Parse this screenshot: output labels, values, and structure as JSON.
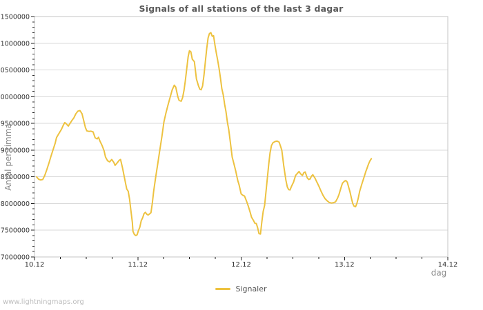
{
  "title": "Signals of all stations of the last 3 dagar",
  "watermark": "www.lightningmaps.org",
  "legend": {
    "items": [
      {
        "label": "Signaler",
        "color": "#EDC240"
      }
    ],
    "position": "bottom-center"
  },
  "colors": {
    "series": "#EDC240",
    "grid": "#dadada",
    "frame": "#c6c6c6",
    "tick": "#222222",
    "tick_label": "#333333",
    "title": "#5a5a5a",
    "axis_title": "#8a8a8a",
    "watermark": "#bdbdbd",
    "background": "#ffffff"
  },
  "chart_data": {
    "type": "line",
    "title": "Signals of all stations of the last 3 dagar",
    "xlabel": "dag",
    "ylabel": "Antal per timma",
    "grid": "horizontal-only",
    "legend_position": "bottom-center",
    "xlim": [
      0,
      4
    ],
    "ylim": [
      7000000,
      11500000
    ],
    "x_major_ticks": [
      0,
      1,
      2,
      3,
      4
    ],
    "x_tick_labels": [
      "10.12",
      "11.12",
      "12.12",
      "13.12",
      "14.12"
    ],
    "x_minor_step": 0.25,
    "y_major_step": 500000,
    "y_minor_step": 100000,
    "y_major_ticks": [
      7000000,
      7500000,
      8000000,
      8500000,
      9000000,
      9500000,
      10000000,
      10500000,
      11000000,
      11500000
    ],
    "y_tick_labels": [
      "7000000",
      "7500000",
      "8000000",
      "8500000",
      "9000000",
      "9500000",
      "10000000",
      "10500000",
      "11000000",
      "11500000"
    ],
    "series": [
      {
        "name": "Signaler",
        "color": "#EDC240",
        "points": [
          [
            0.02,
            8500000
          ],
          [
            0.04,
            8455000
          ],
          [
            0.06,
            8440000
          ],
          [
            0.08,
            8450000
          ],
          [
            0.1,
            8530000
          ],
          [
            0.12,
            8640000
          ],
          [
            0.14,
            8760000
          ],
          [
            0.16,
            8890000
          ],
          [
            0.18,
            9010000
          ],
          [
            0.2,
            9130000
          ],
          [
            0.213,
            9235000
          ],
          [
            0.233,
            9300000
          ],
          [
            0.26,
            9385000
          ],
          [
            0.28,
            9470000
          ],
          [
            0.293,
            9515000
          ],
          [
            0.313,
            9480000
          ],
          [
            0.327,
            9450000
          ],
          [
            0.347,
            9510000
          ],
          [
            0.367,
            9570000
          ],
          [
            0.38,
            9600000
          ],
          [
            0.4,
            9680000
          ],
          [
            0.42,
            9730000
          ],
          [
            0.44,
            9740000
          ],
          [
            0.46,
            9680000
          ],
          [
            0.473,
            9580000
          ],
          [
            0.493,
            9420000
          ],
          [
            0.507,
            9360000
          ],
          [
            0.527,
            9350000
          ],
          [
            0.547,
            9355000
          ],
          [
            0.567,
            9340000
          ],
          [
            0.587,
            9230000
          ],
          [
            0.607,
            9210000
          ],
          [
            0.62,
            9240000
          ],
          [
            0.633,
            9170000
          ],
          [
            0.653,
            9090000
          ],
          [
            0.673,
            8990000
          ],
          [
            0.687,
            8870000
          ],
          [
            0.707,
            8800000
          ],
          [
            0.727,
            8780000
          ],
          [
            0.747,
            8825000
          ],
          [
            0.767,
            8770000
          ],
          [
            0.78,
            8715000
          ],
          [
            0.8,
            8760000
          ],
          [
            0.82,
            8810000
          ],
          [
            0.833,
            8825000
          ],
          [
            0.853,
            8660000
          ],
          [
            0.867,
            8520000
          ],
          [
            0.88,
            8390000
          ],
          [
            0.893,
            8270000
          ],
          [
            0.907,
            8230000
          ],
          [
            0.92,
            8080000
          ],
          [
            0.933,
            7870000
          ],
          [
            0.947,
            7650000
          ],
          [
            0.953,
            7480000
          ],
          [
            0.967,
            7420000
          ],
          [
            0.98,
            7400000
          ],
          [
            0.993,
            7415000
          ],
          [
            1.007,
            7500000
          ],
          [
            1.02,
            7560000
          ],
          [
            1.033,
            7680000
          ],
          [
            1.047,
            7735000
          ],
          [
            1.06,
            7810000
          ],
          [
            1.073,
            7835000
          ],
          [
            1.087,
            7800000
          ],
          [
            1.1,
            7785000
          ],
          [
            1.113,
            7805000
          ],
          [
            1.127,
            7830000
          ],
          [
            1.14,
            8000000
          ],
          [
            1.153,
            8230000
          ],
          [
            1.173,
            8500000
          ],
          [
            1.193,
            8750000
          ],
          [
            1.213,
            9000000
          ],
          [
            1.233,
            9250000
          ],
          [
            1.253,
            9530000
          ],
          [
            1.273,
            9700000
          ],
          [
            1.293,
            9850000
          ],
          [
            1.313,
            9990000
          ],
          [
            1.333,
            10130000
          ],
          [
            1.353,
            10215000
          ],
          [
            1.367,
            10180000
          ],
          [
            1.387,
            10000000
          ],
          [
            1.4,
            9930000
          ],
          [
            1.42,
            9915000
          ],
          [
            1.433,
            9980000
          ],
          [
            1.447,
            10120000
          ],
          [
            1.46,
            10300000
          ],
          [
            1.473,
            10520000
          ],
          [
            1.487,
            10750000
          ],
          [
            1.5,
            10860000
          ],
          [
            1.513,
            10840000
          ],
          [
            1.527,
            10700000
          ],
          [
            1.547,
            10655000
          ],
          [
            1.567,
            10330000
          ],
          [
            1.587,
            10200000
          ],
          [
            1.6,
            10140000
          ],
          [
            1.613,
            10130000
          ],
          [
            1.627,
            10200000
          ],
          [
            1.64,
            10400000
          ],
          [
            1.653,
            10640000
          ],
          [
            1.667,
            10900000
          ],
          [
            1.68,
            11100000
          ],
          [
            1.693,
            11180000
          ],
          [
            1.707,
            11200000
          ],
          [
            1.72,
            11130000
          ],
          [
            1.733,
            11140000
          ],
          [
            1.747,
            10960000
          ],
          [
            1.76,
            10810000
          ],
          [
            1.773,
            10680000
          ],
          [
            1.787,
            10520000
          ],
          [
            1.8,
            10340000
          ],
          [
            1.813,
            10150000
          ],
          [
            1.827,
            10030000
          ],
          [
            1.84,
            9860000
          ],
          [
            1.853,
            9720000
          ],
          [
            1.867,
            9520000
          ],
          [
            1.88,
            9385000
          ],
          [
            1.9,
            9080000
          ],
          [
            1.913,
            8870000
          ],
          [
            1.933,
            8720000
          ],
          [
            1.947,
            8610000
          ],
          [
            1.967,
            8430000
          ],
          [
            1.98,
            8350000
          ],
          [
            2.0,
            8180000
          ],
          [
            2.02,
            8150000
          ],
          [
            2.033,
            8140000
          ],
          [
            2.053,
            8040000
          ],
          [
            2.067,
            7965000
          ],
          [
            2.087,
            7840000
          ],
          [
            2.1,
            7745000
          ],
          [
            2.12,
            7680000
          ],
          [
            2.133,
            7630000
          ],
          [
            2.147,
            7625000
          ],
          [
            2.16,
            7540000
          ],
          [
            2.173,
            7435000
          ],
          [
            2.187,
            7430000
          ],
          [
            2.2,
            7660000
          ],
          [
            2.213,
            7850000
          ],
          [
            2.227,
            7965000
          ],
          [
            2.247,
            8350000
          ],
          [
            2.267,
            8740000
          ],
          [
            2.28,
            8950000
          ],
          [
            2.293,
            9085000
          ],
          [
            2.307,
            9135000
          ],
          [
            2.327,
            9160000
          ],
          [
            2.347,
            9170000
          ],
          [
            2.367,
            9150000
          ],
          [
            2.38,
            9080000
          ],
          [
            2.393,
            9000000
          ],
          [
            2.413,
            8700000
          ],
          [
            2.433,
            8440000
          ],
          [
            2.447,
            8310000
          ],
          [
            2.46,
            8260000
          ],
          [
            2.473,
            8255000
          ],
          [
            2.487,
            8320000
          ],
          [
            2.507,
            8400000
          ],
          [
            2.527,
            8525000
          ],
          [
            2.547,
            8570000
          ],
          [
            2.56,
            8600000
          ],
          [
            2.573,
            8560000
          ],
          [
            2.593,
            8525000
          ],
          [
            2.607,
            8580000
          ],
          [
            2.62,
            8590000
          ],
          [
            2.64,
            8480000
          ],
          [
            2.653,
            8450000
          ],
          [
            2.667,
            8460000
          ],
          [
            2.68,
            8510000
          ],
          [
            2.693,
            8540000
          ],
          [
            2.713,
            8480000
          ],
          [
            2.733,
            8400000
          ],
          [
            2.753,
            8320000
          ],
          [
            2.773,
            8230000
          ],
          [
            2.793,
            8150000
          ],
          [
            2.813,
            8090000
          ],
          [
            2.833,
            8050000
          ],
          [
            2.853,
            8020000
          ],
          [
            2.873,
            8010000
          ],
          [
            2.893,
            8015000
          ],
          [
            2.913,
            8030000
          ],
          [
            2.933,
            8100000
          ],
          [
            2.947,
            8170000
          ],
          [
            2.967,
            8300000
          ],
          [
            2.98,
            8380000
          ],
          [
            3.0,
            8420000
          ],
          [
            3.013,
            8430000
          ],
          [
            3.027,
            8400000
          ],
          [
            3.04,
            8310000
          ],
          [
            3.053,
            8220000
          ],
          [
            3.067,
            8100000
          ],
          [
            3.08,
            8000000
          ],
          [
            3.093,
            7950000
          ],
          [
            3.107,
            7940000
          ],
          [
            3.12,
            8000000
          ],
          [
            3.133,
            8100000
          ],
          [
            3.147,
            8230000
          ],
          [
            3.167,
            8360000
          ],
          [
            3.187,
            8480000
          ],
          [
            3.207,
            8600000
          ],
          [
            3.22,
            8670000
          ],
          [
            3.233,
            8740000
          ],
          [
            3.247,
            8800000
          ],
          [
            3.26,
            8840000
          ]
        ]
      }
    ]
  }
}
